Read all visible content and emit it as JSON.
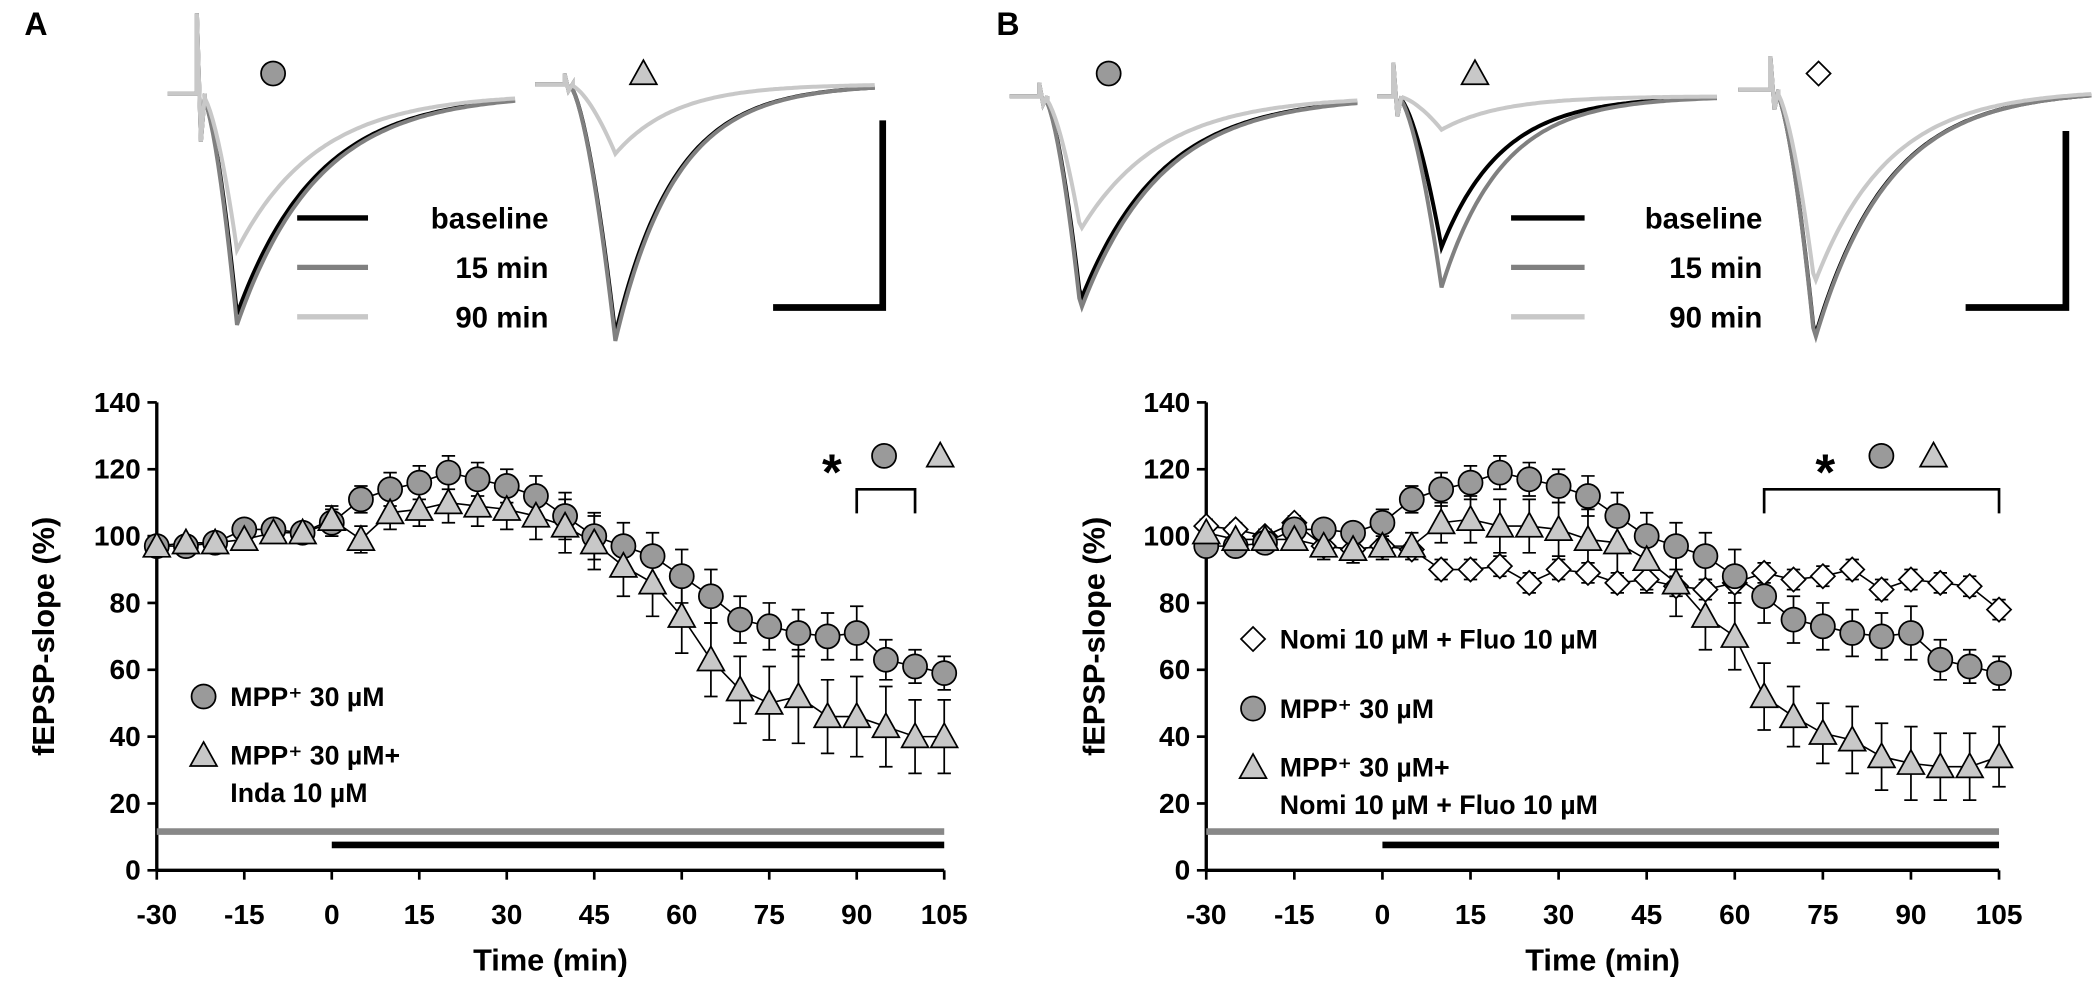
{
  "chart_data": [
    {
      "type": "line",
      "panel": "A",
      "xlabel": "Time (min)",
      "ylabel": "fEPSP-slope (%)",
      "x": [
        -30,
        -25,
        -20,
        -15,
        -10,
        -5,
        0,
        5,
        10,
        15,
        20,
        25,
        30,
        35,
        40,
        45,
        50,
        55,
        60,
        65,
        70,
        75,
        80,
        85,
        90,
        95,
        100,
        105
      ],
      "xlim": [
        -30,
        105
      ],
      "xticks": [
        -30,
        -15,
        0,
        15,
        30,
        45,
        60,
        75,
        90,
        105
      ],
      "ylim": [
        0,
        140
      ],
      "yticks": [
        0,
        20,
        40,
        60,
        80,
        100,
        120,
        140
      ],
      "series": [
        {
          "name": [
            "MPP⁺ 30 µM"
          ],
          "marker": "circle",
          "color": "#9a9a9a",
          "values": [
            97,
            97,
            98,
            102,
            102,
            101,
            104,
            111,
            114,
            116,
            119,
            117,
            115,
            112,
            106,
            100,
            97,
            94,
            88,
            82,
            75,
            73,
            71,
            70,
            71,
            63,
            61,
            59
          ],
          "errors": [
            2,
            2,
            2,
            3,
            3,
            3,
            4,
            4,
            5,
            5,
            5,
            5,
            5,
            6,
            7,
            7,
            7,
            7,
            8,
            8,
            7,
            7,
            7,
            7,
            8,
            6,
            5,
            5
          ]
        },
        {
          "name": [
            "MPP⁺ 30 µM+",
            "Inda 10 µM"
          ],
          "marker": "triangle",
          "color": "#c8c8c8",
          "values": [
            97,
            98,
            98,
            99,
            101,
            101,
            105,
            99,
            107,
            108,
            110,
            109,
            108,
            106,
            103,
            98,
            91,
            86,
            76,
            63,
            54,
            50,
            52,
            46,
            46,
            43,
            40,
            40
          ],
          "errors": [
            2,
            2,
            2,
            3,
            3,
            3,
            4,
            4,
            5,
            5,
            6,
            6,
            6,
            7,
            8,
            8,
            9,
            10,
            11,
            11,
            10,
            11,
            14,
            11,
            12,
            12,
            11,
            11
          ]
        }
      ],
      "significance": {
        "label": "*",
        "range": [
          90,
          100
        ]
      },
      "treatment_bars": [
        {
          "color": "#888888",
          "range": [
            -30,
            105
          ]
        },
        {
          "color": "#000000",
          "range": [
            0,
            105
          ]
        }
      ],
      "trace_legend": [
        {
          "label": "baseline",
          "color": "#000000"
        },
        {
          "label": "15 min",
          "color": "#808080"
        },
        {
          "label": "90 min",
          "color": "#c8c8c8"
        }
      ]
    },
    {
      "type": "line",
      "panel": "B",
      "xlabel": "Time (min)",
      "ylabel": "fEPSP-slope (%)",
      "x": [
        -30,
        -25,
        -20,
        -15,
        -10,
        -5,
        0,
        5,
        10,
        15,
        20,
        25,
        30,
        35,
        40,
        45,
        50,
        55,
        60,
        65,
        70,
        75,
        80,
        85,
        90,
        95,
        100,
        105
      ],
      "xlim": [
        -30,
        105
      ],
      "xticks": [
        -30,
        -15,
        0,
        15,
        30,
        45,
        60,
        75,
        90,
        105
      ],
      "ylim": [
        0,
        140
      ],
      "yticks": [
        0,
        20,
        40,
        60,
        80,
        100,
        120,
        140
      ],
      "series": [
        {
          "name": [
            "Nomi 10 µM + Fluo 10 µM"
          ],
          "marker": "diamond",
          "color": "#ffffff",
          "values": [
            103,
            102,
            100,
            104,
            97,
            96,
            97,
            96,
            90,
            90,
            91,
            86,
            90,
            89,
            86,
            87,
            85,
            84,
            86,
            89,
            87,
            88,
            90,
            84,
            87,
            86,
            85,
            78
          ],
          "errors": [
            2,
            2,
            2,
            2,
            2,
            2,
            2,
            2,
            3,
            3,
            3,
            3,
            3,
            3,
            3,
            3,
            3,
            3,
            3,
            3,
            3,
            3,
            3,
            3,
            3,
            3,
            3,
            3
          ]
        },
        {
          "name": [
            "MPP⁺ 30 µM"
          ],
          "marker": "circle",
          "color": "#9a9a9a",
          "values": [
            97,
            97,
            98,
            102,
            102,
            101,
            104,
            111,
            114,
            116,
            119,
            117,
            115,
            112,
            106,
            100,
            97,
            94,
            88,
            82,
            75,
            73,
            71,
            70,
            71,
            63,
            61,
            59
          ],
          "errors": [
            2,
            2,
            2,
            3,
            3,
            3,
            4,
            4,
            5,
            5,
            5,
            5,
            5,
            6,
            7,
            7,
            7,
            7,
            8,
            8,
            7,
            7,
            7,
            7,
            8,
            6,
            5,
            5
          ]
        },
        {
          "name": [
            "MPP⁺ 30 µM+",
            "Nomi 10 µM + Fluo 10 µM"
          ],
          "marker": "triangle",
          "color": "#c8c8c8",
          "values": [
            101,
            99,
            99,
            99,
            97,
            96,
            97,
            97,
            104,
            105,
            103,
            103,
            102,
            99,
            98,
            93,
            86,
            76,
            70,
            52,
            46,
            41,
            39,
            34,
            32,
            31,
            31,
            34
          ],
          "errors": [
            3,
            3,
            3,
            3,
            4,
            4,
            4,
            4,
            6,
            7,
            8,
            8,
            8,
            9,
            10,
            10,
            10,
            10,
            10,
            10,
            9,
            9,
            10,
            10,
            11,
            10,
            10,
            9
          ]
        }
      ],
      "significance": {
        "label": "*",
        "range": [
          65,
          105
        ]
      },
      "treatment_bars": [
        {
          "color": "#888888",
          "range": [
            -30,
            105
          ]
        },
        {
          "color": "#000000",
          "range": [
            0,
            105
          ]
        }
      ],
      "trace_legend": [
        {
          "label": "baseline",
          "color": "#000000"
        },
        {
          "label": "15 min",
          "color": "#808080"
        },
        {
          "label": "90 min",
          "color": "#c8c8c8"
        }
      ]
    }
  ]
}
